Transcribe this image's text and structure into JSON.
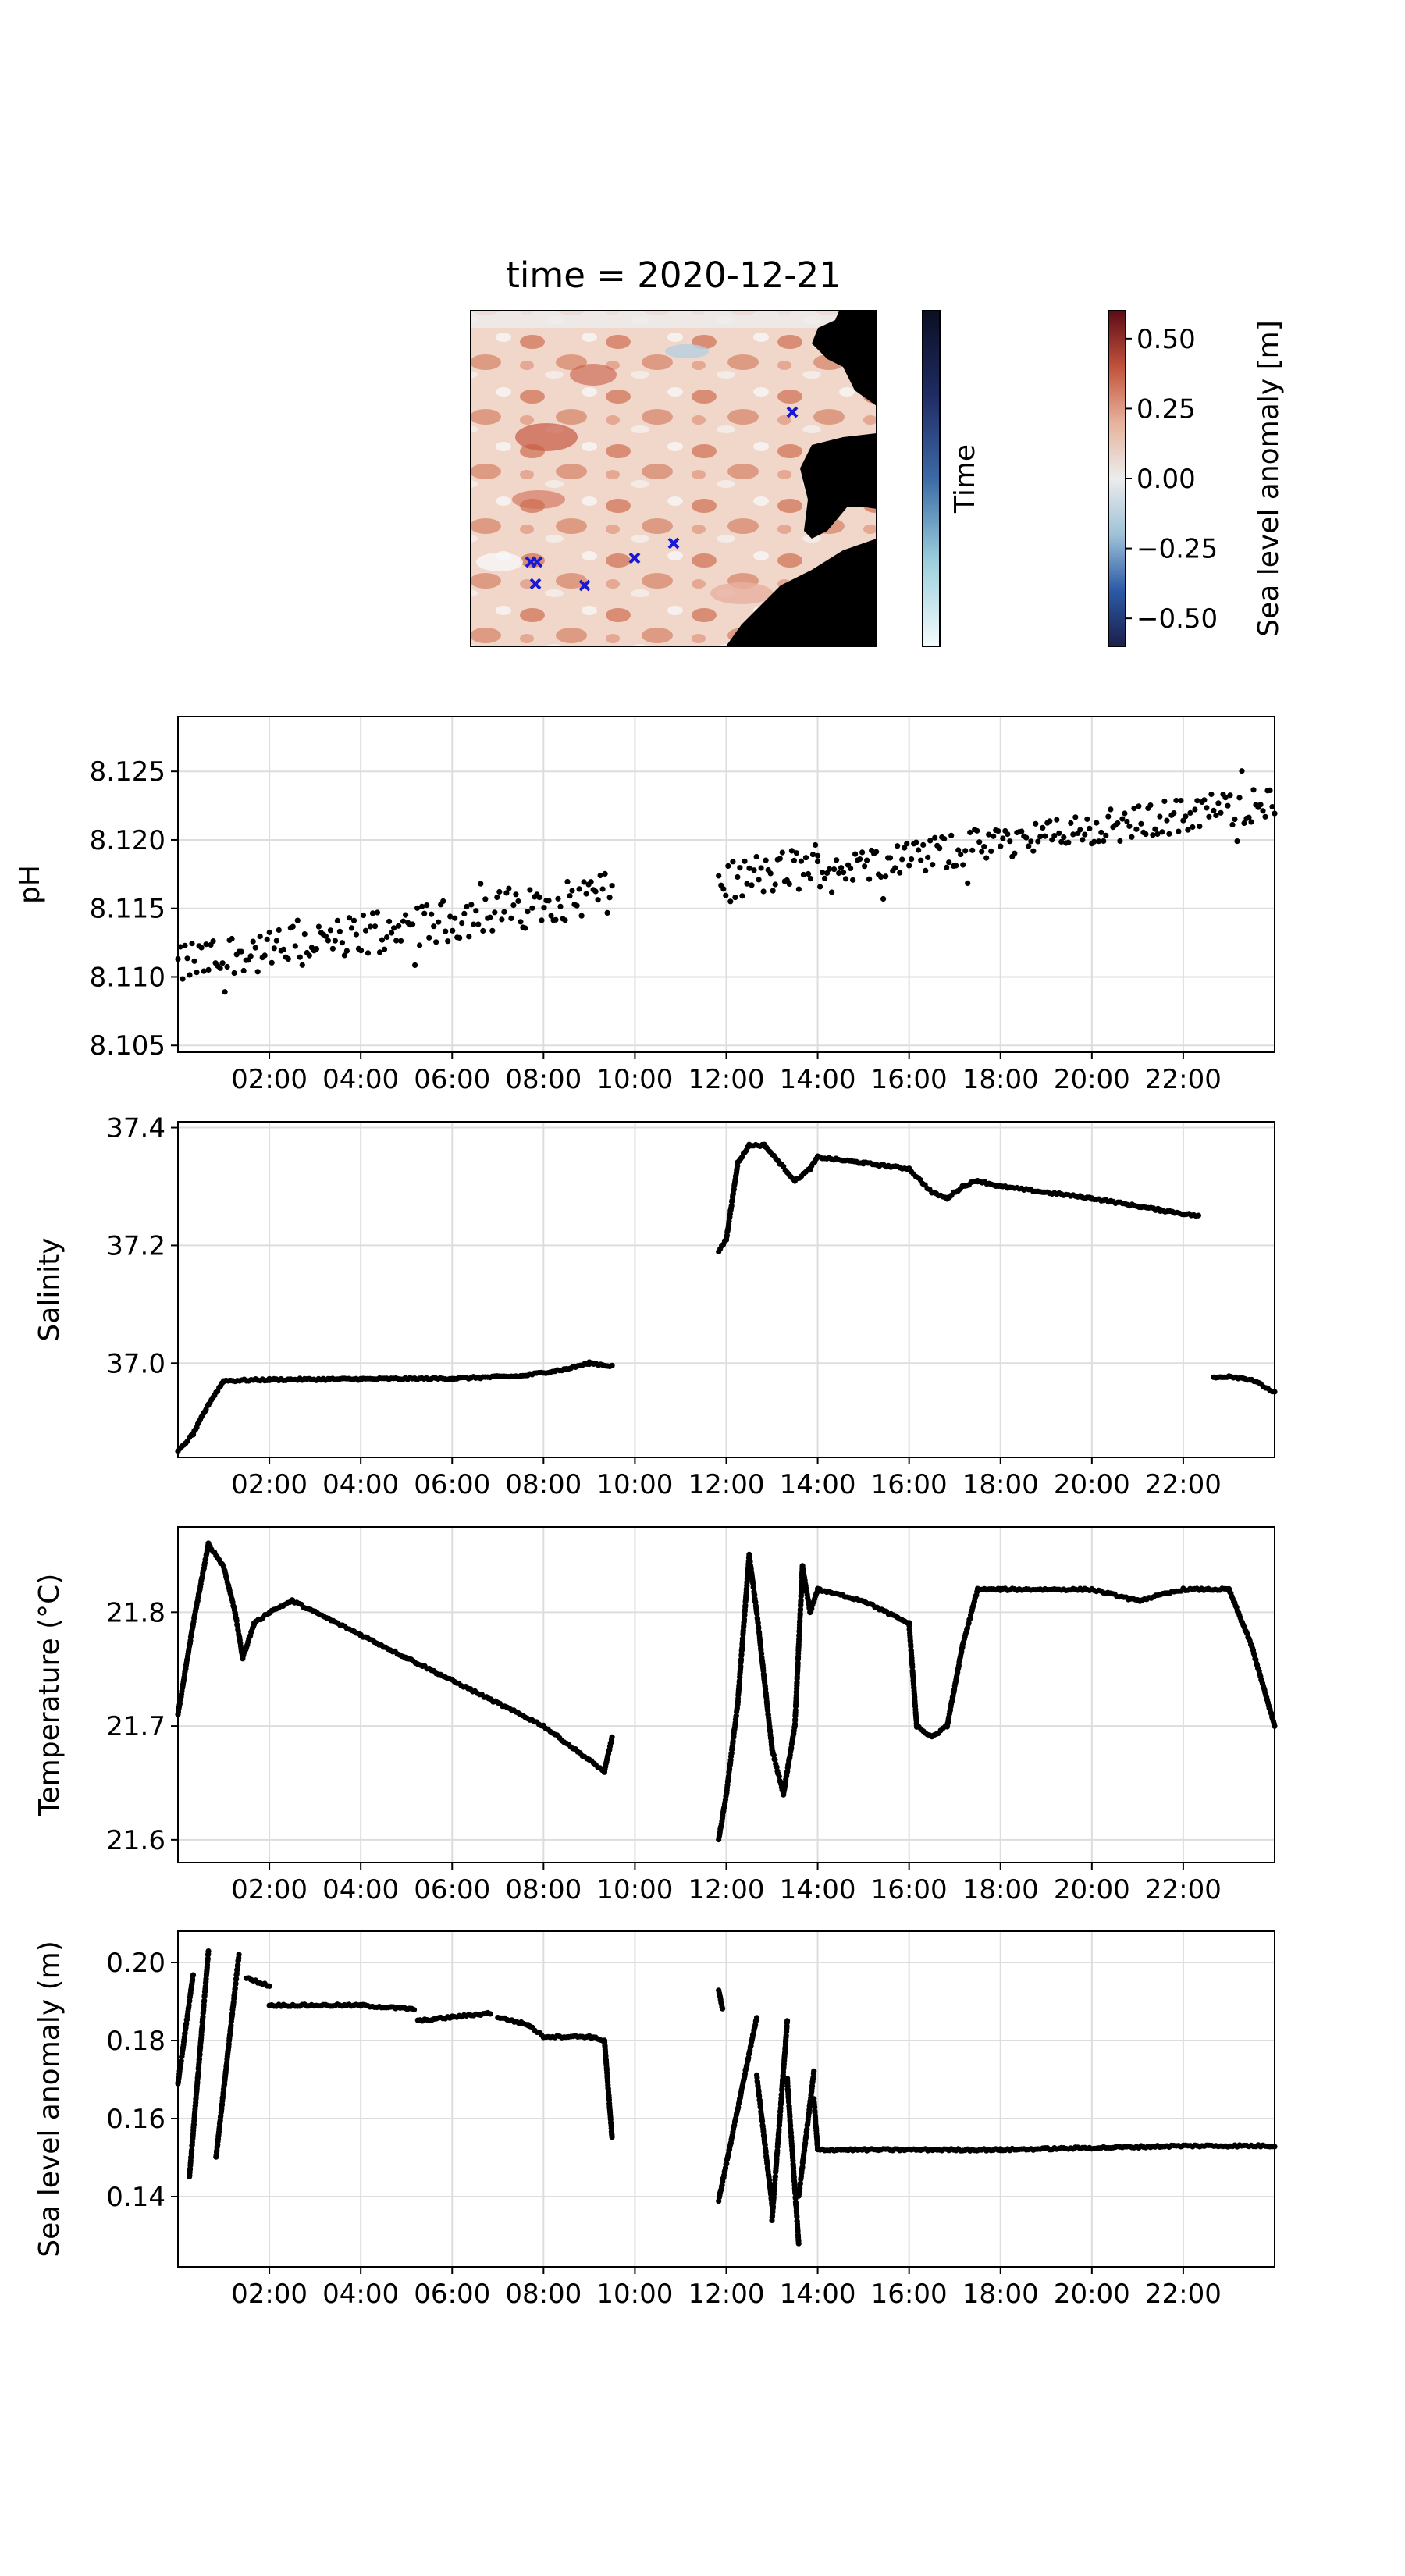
{
  "figure": {
    "map": {
      "title": "time = 2020-12-21",
      "time_colorbar_label": "Time",
      "sla_colorbar_label": "Sea level anomaly [m]",
      "sla_colorbar_ticks": [
        "0.50",
        "0.25",
        "0.00",
        "−0.25",
        "−0.50"
      ],
      "sla_colorbar_tick_values": [
        0.5,
        0.25,
        0.0,
        -0.25,
        -0.5
      ],
      "sla_range": [
        -0.6,
        0.6
      ],
      "sla_colormap": [
        "#1b1f4a",
        "#2c5aa6",
        "#9fc2d8",
        "#ececec",
        "#e7b29c",
        "#c1523c",
        "#5c0c16"
      ],
      "time_colormap": [
        "#f4fbfd",
        "#9dd1dd",
        "#3c6aa6",
        "#1f2b63",
        "#0b0f22"
      ],
      "land_color": "#000000",
      "marker_color": "#1a1ad6",
      "marker_count": 7
    }
  },
  "chart_data": [
    {
      "type": "scatter",
      "title": "",
      "xlabel": "",
      "ylabel": "pH",
      "xlim": [
        "00:00",
        "24:00"
      ],
      "ylim": [
        8.1045,
        8.129
      ],
      "yticks": [
        8.105,
        8.11,
        8.115,
        8.12,
        8.125
      ],
      "ytick_labels": [
        "8.105",
        "8.110",
        "8.115",
        "8.120",
        "8.125"
      ],
      "xtick_labels": [
        "02:00",
        "04:00",
        "06:00",
        "08:00",
        "10:00",
        "12:00",
        "14:00",
        "16:00",
        "18:00",
        "20:00",
        "22:00"
      ],
      "grid": true,
      "marker_color": "#000000",
      "segments": [
        {
          "x": [
            "00:00",
            "09:30"
          ],
          "y": [
            8.1108,
            8.1162
          ],
          "spread": 0.0025
        },
        {
          "x": [
            "11:50",
            "14:00"
          ],
          "y": [
            8.1167,
            8.1182
          ],
          "spread": 0.0025
        },
        {
          "x": [
            "14:00",
            "24:00"
          ],
          "y": [
            8.1178,
            8.1228
          ],
          "spread": 0.002
        }
      ]
    },
    {
      "type": "scatter",
      "title": "",
      "xlabel": "",
      "ylabel": "Salinity",
      "xlim": [
        "00:00",
        "24:00"
      ],
      "ylim": [
        36.84,
        37.41
      ],
      "yticks": [
        37.0,
        37.2,
        37.4
      ],
      "ytick_labels": [
        "37.0",
        "37.2",
        "37.4"
      ],
      "xtick_labels": [
        "02:00",
        "04:00",
        "06:00",
        "08:00",
        "10:00",
        "12:00",
        "14:00",
        "16:00",
        "18:00",
        "20:00",
        "22:00"
      ],
      "grid": true,
      "marker_color": "#000000",
      "segments": [
        {
          "x": [
            "00:00",
            "00:20",
            "00:40",
            "01:00",
            "02:00",
            "04:00",
            "06:00",
            "07:30",
            "08:30",
            "09:00",
            "09:30"
          ],
          "y": [
            36.85,
            36.88,
            36.93,
            36.97,
            36.972,
            36.973,
            36.974,
            36.978,
            36.99,
            37.0,
            36.995
          ]
        },
        {
          "x": [
            "11:50",
            "12:00",
            "12:15",
            "12:30",
            "12:50",
            "13:10",
            "13:30",
            "13:50",
            "14:00",
            "15:00",
            "16:00",
            "16:30",
            "16:50",
            "17:10",
            "17:30",
            "18:00",
            "20:00",
            "21:30",
            "22:20"
          ],
          "y": [
            37.19,
            37.21,
            37.34,
            37.37,
            37.37,
            37.34,
            37.31,
            37.33,
            37.35,
            37.34,
            37.33,
            37.29,
            37.28,
            37.3,
            37.31,
            37.3,
            37.28,
            37.26,
            37.25
          ]
        },
        {
          "x": [
            "22:40",
            "23:00",
            "23:30",
            "24:00"
          ],
          "y": [
            36.975,
            36.978,
            36.972,
            36.95
          ]
        }
      ]
    },
    {
      "type": "scatter",
      "title": "",
      "xlabel": "",
      "ylabel": "Temperature (°C)",
      "xlim": [
        "00:00",
        "24:00"
      ],
      "ylim": [
        21.58,
        21.875
      ],
      "yticks": [
        21.6,
        21.7,
        21.8
      ],
      "ytick_labels": [
        "21.6",
        "21.7",
        "21.8"
      ],
      "xtick_labels": [
        "02:00",
        "04:00",
        "06:00",
        "08:00",
        "10:00",
        "12:00",
        "14:00",
        "16:00",
        "18:00",
        "20:00",
        "22:00"
      ],
      "grid": true,
      "marker_color": "#000000",
      "segments": [
        {
          "x": [
            "00:00",
            "00:20",
            "00:40",
            "01:00",
            "01:15",
            "01:25",
            "01:40",
            "02:00",
            "02:30",
            "03:00",
            "04:00",
            "05:00",
            "06:00",
            "07:00",
            "08:00",
            "09:00",
            "09:20",
            "09:30"
          ],
          "y": [
            21.71,
            21.79,
            21.86,
            21.84,
            21.8,
            21.76,
            21.79,
            21.8,
            21.81,
            21.8,
            21.78,
            21.76,
            21.74,
            21.72,
            21.7,
            21.67,
            21.66,
            21.69
          ]
        },
        {
          "x": [
            "11:50",
            "12:00",
            "12:15",
            "12:30",
            "12:40",
            "12:50",
            "13:00",
            "13:15",
            "13:30",
            "13:40",
            "13:50",
            "14:00",
            "15:00",
            "15:30",
            "16:00",
            "16:10",
            "16:30",
            "16:50",
            "17:10",
            "17:30",
            "18:00",
            "20:00",
            "21:00",
            "22:00",
            "23:00",
            "23:30",
            "24:00"
          ],
          "y": [
            21.6,
            21.64,
            21.72,
            21.85,
            21.8,
            21.74,
            21.68,
            21.64,
            21.7,
            21.84,
            21.8,
            21.82,
            21.81,
            21.8,
            21.79,
            21.7,
            21.69,
            21.7,
            21.77,
            21.82,
            21.82,
            21.82,
            21.81,
            21.82,
            21.82,
            21.77,
            21.7
          ]
        }
      ]
    },
    {
      "type": "scatter",
      "title": "",
      "xlabel": "",
      "ylabel": "Sea level anomaly (m)",
      "xlim": [
        "00:00",
        "24:00"
      ],
      "ylim": [
        0.122,
        0.208
      ],
      "yticks": [
        0.14,
        0.16,
        0.18,
        0.2
      ],
      "ytick_labels": [
        "0.14",
        "0.16",
        "0.18",
        "0.20"
      ],
      "xtick_labels": [
        "02:00",
        "04:00",
        "06:00",
        "08:00",
        "10:00",
        "12:00",
        "14:00",
        "16:00",
        "18:00",
        "20:00",
        "22:00"
      ],
      "grid": true,
      "marker_color": "#000000",
      "segments": [
        {
          "x": [
            "00:00",
            "00:20"
          ],
          "y": [
            0.169,
            0.197
          ]
        },
        {
          "x": [
            "00:15",
            "00:40"
          ],
          "y": [
            0.145,
            0.203
          ]
        },
        {
          "x": [
            "00:50",
            "01:20"
          ],
          "y": [
            0.15,
            0.202
          ]
        },
        {
          "x": [
            "01:30",
            "02:00"
          ],
          "y": [
            0.196,
            0.194
          ]
        },
        {
          "x": [
            "02:00",
            "04:00",
            "05:10"
          ],
          "y": [
            0.189,
            0.189,
            0.188
          ]
        },
        {
          "x": [
            "05:15",
            "06:00",
            "06:50"
          ],
          "y": [
            0.185,
            0.186,
            0.187
          ]
        },
        {
          "x": [
            "07:00",
            "07:40",
            "08:00",
            "09:00",
            "09:20"
          ],
          "y": [
            0.186,
            0.184,
            0.181,
            0.181,
            0.18
          ]
        },
        {
          "x": [
            "09:20",
            "09:30"
          ],
          "y": [
            0.18,
            0.155
          ]
        },
        {
          "x": [
            "11:50",
            "11:55"
          ],
          "y": [
            0.193,
            0.188
          ]
        },
        {
          "x": [
            "11:50",
            "12:40"
          ],
          "y": [
            0.139,
            0.186
          ]
        },
        {
          "x": [
            "12:40",
            "13:00"
          ],
          "y": [
            0.171,
            0.138
          ]
        },
        {
          "x": [
            "13:00",
            "13:20"
          ],
          "y": [
            0.134,
            0.185
          ]
        },
        {
          "x": [
            "13:20",
            "13:35"
          ],
          "y": [
            0.17,
            0.128
          ]
        },
        {
          "x": [
            "13:35",
            "13:55"
          ],
          "y": [
            0.14,
            0.172
          ]
        },
        {
          "x": [
            "13:55",
            "14:00"
          ],
          "y": [
            0.165,
            0.152
          ]
        },
        {
          "x": [
            "14:00",
            "18:00",
            "22:00",
            "24:00"
          ],
          "y": [
            0.152,
            0.152,
            0.153,
            0.153
          ]
        }
      ]
    }
  ]
}
